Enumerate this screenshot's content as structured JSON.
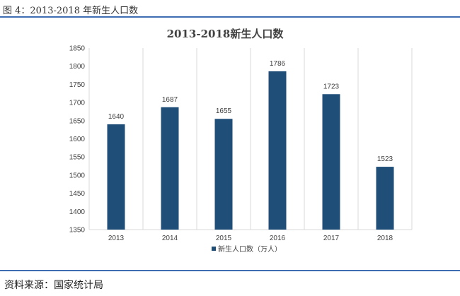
{
  "figure_caption": "图 4：2013-2018 年新生人口数",
  "source_note": "资料来源：国家统计局",
  "colors": {
    "accent_rule": "#3e6db4",
    "bar": "#1f4e79",
    "grid": "#d9d9d9"
  },
  "chart_data": {
    "type": "bar",
    "title": "2013-2018新生人口数",
    "xlabel": "",
    "ylabel": "",
    "categories": [
      "2013",
      "2014",
      "2015",
      "2016",
      "2017",
      "2018"
    ],
    "series": [
      {
        "name": "新生人口数（万人）",
        "values": [
          1640,
          1687,
          1655,
          1786,
          1723,
          1523
        ]
      }
    ],
    "ylim": [
      1350,
      1850
    ],
    "yticks": [
      1350,
      1400,
      1450,
      1500,
      1550,
      1600,
      1650,
      1700,
      1750,
      1800,
      1850
    ],
    "grid": "vertical",
    "data_labels": true,
    "legend_position": "bottom"
  }
}
